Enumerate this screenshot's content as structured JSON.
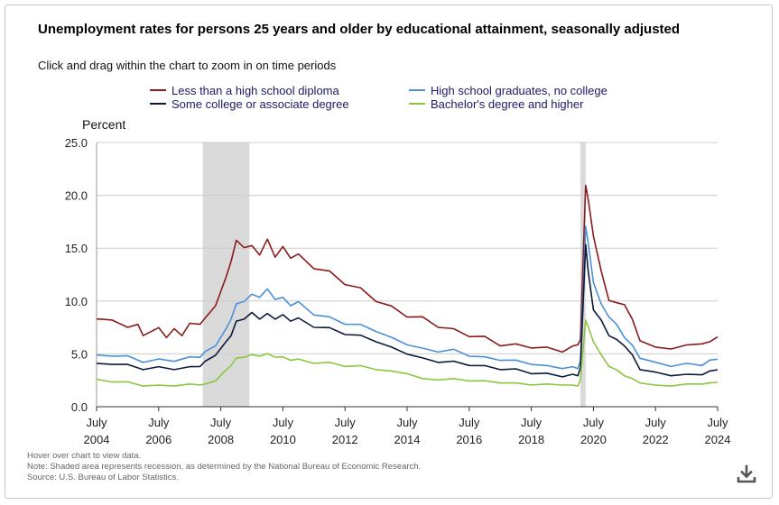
{
  "title": "Unemployment rates for persons 25 years and older by educational attainment, seasonally adjusted",
  "subtitle": "Click and drag within the chart to zoom in on time periods",
  "footer": {
    "line1": "Hover over chart to view data.",
    "line2": "Note: Shaded area represents recession, as determined by the National Bureau of Economic Research.",
    "line3": "Source: U.S. Bureau of Labor Statistics."
  },
  "download": {
    "icon": "download-icon"
  },
  "colors": {
    "less_than_hs": "#8b1a1a",
    "hs_grad": "#4a90d9",
    "some_college": "#0c1a3a",
    "bachelors": "#8cc63f",
    "recession": "#dadada",
    "grid": "#cccccc"
  },
  "chart_data": {
    "type": "line",
    "ylabel": "Percent",
    "ylim": [
      0,
      25
    ],
    "yticks": [
      "0.0",
      "5.0",
      "10.0",
      "15.0",
      "20.0",
      "25.0"
    ],
    "xlim": [
      2004.5,
      2024.5
    ],
    "xticks": [
      {
        "month": "July",
        "year": "2004",
        "x": 2004.5
      },
      {
        "month": "July",
        "year": "2006",
        "x": 2006.5
      },
      {
        "month": "July",
        "year": "2008",
        "x": 2008.5
      },
      {
        "month": "July",
        "year": "2010",
        "x": 2010.5
      },
      {
        "month": "July",
        "year": "2012",
        "x": 2012.5
      },
      {
        "month": "July",
        "year": "2014",
        "x": 2014.5
      },
      {
        "month": "July",
        "year": "2016",
        "x": 2016.5
      },
      {
        "month": "July",
        "year": "2018",
        "x": 2018.5
      },
      {
        "month": "July",
        "year": "2020",
        "x": 2020.5
      },
      {
        "month": "July",
        "year": "2022",
        "x": 2022.5
      },
      {
        "month": "July",
        "year": "2024",
        "x": 2024.5
      }
    ],
    "recessions": [
      [
        2007.92,
        2009.42
      ],
      [
        2020.08,
        2020.25
      ]
    ],
    "series": [
      {
        "name": "Less than a high school diploma",
        "key": "less_than_hs",
        "x": [
          2004.5,
          2004.67,
          2005.0,
          2005.5,
          2005.83,
          2006.0,
          2006.5,
          2006.75,
          2007.0,
          2007.25,
          2007.5,
          2007.83,
          2008.0,
          2008.33,
          2008.67,
          2008.83,
          2009.0,
          2009.25,
          2009.5,
          2009.75,
          2010.0,
          2010.25,
          2010.5,
          2010.75,
          2011.0,
          2011.5,
          2012.0,
          2012.5,
          2013.0,
          2013.5,
          2014.0,
          2014.5,
          2015.0,
          2015.5,
          2016.0,
          2016.5,
          2017.0,
          2017.5,
          2018.0,
          2018.5,
          2019.0,
          2019.5,
          2019.83,
          2020.0,
          2020.08,
          2020.25,
          2020.33,
          2020.5,
          2020.75,
          2021.0,
          2021.25,
          2021.5,
          2021.75,
          2022.0,
          2022.5,
          2023.0,
          2023.5,
          2024.0,
          2024.25,
          2024.5
        ],
        "values": [
          8.3,
          8.5,
          8.0,
          7.7,
          7.6,
          6.9,
          7.3,
          6.7,
          7.2,
          6.9,
          7.7,
          8.0,
          8.2,
          9.8,
          12.0,
          14.0,
          15.5,
          15.3,
          15.0,
          14.6,
          15.6,
          14.4,
          14.9,
          14.3,
          14.2,
          13.3,
          12.6,
          11.8,
          11.0,
          10.2,
          9.3,
          8.7,
          8.3,
          7.7,
          7.2,
          6.8,
          6.5,
          5.9,
          5.8,
          5.7,
          5.5,
          5.3,
          5.6,
          6.0,
          6.2,
          21.2,
          19.4,
          16.4,
          12.6,
          10.3,
          9.6,
          9.9,
          8.1,
          6.4,
          5.5,
          5.6,
          5.7,
          6.1,
          6.0,
          6.6
        ]
      },
      {
        "name": "High school graduates, no college",
        "key": "hs_grad",
        "x": [
          2004.5,
          2005.0,
          2005.5,
          2006.0,
          2006.5,
          2007.0,
          2007.5,
          2007.83,
          2008.0,
          2008.33,
          2008.67,
          2008.83,
          2009.0,
          2009.25,
          2009.5,
          2009.75,
          2010.0,
          2010.25,
          2010.5,
          2010.75,
          2011.0,
          2011.5,
          2012.0,
          2012.5,
          2013.0,
          2013.5,
          2014.0,
          2014.5,
          2015.0,
          2015.5,
          2016.0,
          2016.5,
          2017.0,
          2017.5,
          2018.0,
          2018.5,
          2019.0,
          2019.5,
          2019.83,
          2020.0,
          2020.08,
          2020.25,
          2020.33,
          2020.5,
          2020.75,
          2021.0,
          2021.25,
          2021.5,
          2021.75,
          2022.0,
          2022.5,
          2023.0,
          2023.5,
          2024.0,
          2024.25,
          2024.5
        ],
        "values": [
          4.9,
          4.9,
          4.7,
          4.3,
          4.4,
          4.4,
          4.6,
          4.8,
          5.1,
          5.9,
          7.2,
          8.5,
          9.5,
          10.2,
          10.4,
          10.6,
          10.9,
          10.4,
          10.1,
          9.8,
          9.7,
          8.9,
          8.3,
          8.0,
          7.6,
          7.3,
          6.4,
          6.0,
          5.4,
          5.3,
          5.3,
          4.9,
          4.6,
          4.5,
          4.3,
          4.1,
          3.8,
          3.7,
          3.7,
          3.7,
          4.2,
          17.3,
          15.3,
          12.0,
          9.5,
          8.7,
          7.6,
          6.7,
          5.7,
          4.7,
          4.1,
          3.9,
          4.0,
          4.0,
          4.3,
          4.5
        ]
      },
      {
        "name": "Some college or associate degree",
        "key": "some_college",
        "x": [
          2004.5,
          2005.0,
          2005.5,
          2006.0,
          2006.5,
          2007.0,
          2007.5,
          2007.83,
          2008.0,
          2008.33,
          2008.67,
          2008.83,
          2009.0,
          2009.25,
          2009.5,
          2009.75,
          2010.0,
          2010.25,
          2010.5,
          2010.75,
          2011.0,
          2011.5,
          2012.0,
          2012.5,
          2013.0,
          2013.5,
          2014.0,
          2014.5,
          2015.0,
          2015.5,
          2016.0,
          2016.5,
          2017.0,
          2017.5,
          2018.0,
          2018.5,
          2019.0,
          2019.5,
          2019.83,
          2020.0,
          2020.08,
          2020.25,
          2020.33,
          2020.5,
          2020.75,
          2021.0,
          2021.25,
          2021.5,
          2021.75,
          2022.0,
          2022.5,
          2023.0,
          2023.5,
          2024.0,
          2024.25,
          2024.5
        ],
        "values": [
          4.1,
          4.1,
          3.9,
          3.6,
          3.7,
          3.6,
          3.7,
          3.9,
          4.2,
          5.0,
          6.0,
          6.9,
          7.9,
          8.5,
          8.7,
          8.5,
          8.6,
          8.5,
          8.5,
          8.3,
          8.2,
          7.7,
          7.3,
          7.0,
          6.6,
          6.3,
          5.5,
          5.1,
          4.5,
          4.3,
          4.2,
          4.0,
          3.8,
          3.6,
          3.5,
          3.2,
          3.1,
          2.9,
          3.0,
          3.0,
          3.6,
          15.6,
          12.6,
          9.4,
          8.0,
          6.9,
          6.2,
          5.9,
          4.8,
          3.6,
          3.2,
          3.0,
          3.0,
          3.1,
          3.3,
          3.5
        ]
      },
      {
        "name": "Bachelor's degree and higher",
        "key": "bachelors",
        "x": [
          2004.5,
          2005.0,
          2005.5,
          2006.0,
          2006.5,
          2007.0,
          2007.5,
          2007.83,
          2008.0,
          2008.33,
          2008.67,
          2008.83,
          2009.0,
          2009.25,
          2009.5,
          2009.75,
          2010.0,
          2010.25,
          2010.5,
          2010.75,
          2011.0,
          2011.5,
          2012.0,
          2012.5,
          2013.0,
          2013.5,
          2014.0,
          2014.5,
          2015.0,
          2015.5,
          2016.0,
          2016.5,
          2017.0,
          2017.5,
          2018.0,
          2018.5,
          2019.0,
          2019.5,
          2019.83,
          2020.0,
          2020.08,
          2020.25,
          2020.33,
          2020.5,
          2020.75,
          2021.0,
          2021.25,
          2021.5,
          2021.75,
          2022.0,
          2022.5,
          2023.0,
          2023.5,
          2024.0,
          2024.25,
          2024.5
        ],
        "values": [
          2.6,
          2.4,
          2.3,
          2.0,
          2.0,
          2.0,
          2.1,
          2.1,
          2.1,
          2.5,
          3.4,
          4.0,
          4.5,
          4.8,
          4.8,
          4.9,
          4.9,
          4.8,
          4.6,
          4.5,
          4.4,
          4.2,
          4.1,
          3.9,
          3.8,
          3.6,
          3.3,
          3.2,
          2.6,
          2.6,
          2.6,
          2.5,
          2.4,
          2.3,
          2.2,
          2.1,
          2.1,
          2.1,
          2.0,
          2.0,
          2.5,
          8.4,
          7.4,
          6.3,
          4.8,
          3.9,
          3.4,
          3.0,
          2.6,
          2.3,
          2.0,
          2.0,
          2.1,
          2.2,
          2.2,
          2.3
        ]
      }
    ]
  }
}
